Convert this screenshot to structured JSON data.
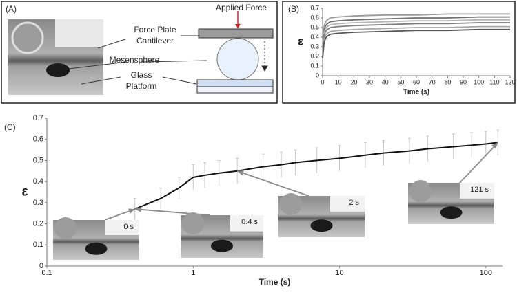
{
  "panel_a": {
    "label": "(A)",
    "applied_force": "Applied Force",
    "cantilever": [
      "Force Plate",
      "Cantilever"
    ],
    "sphere": "Mesensphere",
    "platform": [
      "Glass",
      "Platform"
    ]
  },
  "chart_data": [
    {
      "type": "line",
      "label": "(B)",
      "ylabel": "ε",
      "xlabel": "Time (s)",
      "xlim": [
        0,
        120
      ],
      "xticks": [
        0,
        10,
        20,
        30,
        40,
        50,
        60,
        70,
        80,
        90,
        100,
        110,
        120
      ],
      "ylim": [
        0,
        0.7
      ],
      "yticks": [
        0,
        0.1,
        0.2,
        0.3,
        0.4,
        0.5,
        0.6,
        0.7
      ],
      "x": [
        0,
        1,
        2,
        3,
        5,
        10,
        20,
        40,
        60,
        80,
        100,
        120
      ],
      "series": [
        {
          "color": "#9a9a9a",
          "values": [
            0.3,
            0.52,
            0.56,
            0.58,
            0.6,
            0.61,
            0.62,
            0.63,
            0.63,
            0.64,
            0.64,
            0.64
          ]
        },
        {
          "color": "#6e6e6e",
          "values": [
            0.28,
            0.48,
            0.52,
            0.54,
            0.56,
            0.57,
            0.58,
            0.59,
            0.6,
            0.6,
            0.61,
            0.61
          ]
        },
        {
          "color": "#b5b5b5",
          "values": [
            0.25,
            0.45,
            0.49,
            0.51,
            0.53,
            0.54,
            0.55,
            0.56,
            0.57,
            0.57,
            0.58,
            0.58
          ]
        },
        {
          "color": "#7d7d7d",
          "values": [
            0.22,
            0.42,
            0.46,
            0.48,
            0.5,
            0.51,
            0.52,
            0.53,
            0.54,
            0.54,
            0.55,
            0.55
          ]
        },
        {
          "color": "#a8a8a8",
          "values": [
            0.2,
            0.38,
            0.42,
            0.44,
            0.46,
            0.47,
            0.48,
            0.49,
            0.5,
            0.5,
            0.51,
            0.51
          ]
        },
        {
          "color": "#555555",
          "values": [
            0.18,
            0.35,
            0.39,
            0.41,
            0.43,
            0.44,
            0.45,
            0.46,
            0.47,
            0.47,
            0.48,
            0.48
          ]
        }
      ]
    },
    {
      "type": "line",
      "label": "(C)",
      "log_x": true,
      "ylabel": "ε",
      "xlabel": "Time (s)",
      "xlim": [
        0.1,
        130
      ],
      "xticks": [
        0.1,
        1,
        10,
        100
      ],
      "ylim": [
        0,
        0.7
      ],
      "yticks": [
        0,
        0.1,
        0.2,
        0.3,
        0.4,
        0.5,
        0.6,
        0.7
      ],
      "x": [
        0.4,
        0.6,
        0.8,
        1,
        1.2,
        1.5,
        2,
        3,
        4,
        5,
        7,
        10,
        15,
        20,
        30,
        40,
        60,
        80,
        100,
        121
      ],
      "series": [
        {
          "color": "#111111",
          "values": [
            0.27,
            0.32,
            0.37,
            0.42,
            0.43,
            0.44,
            0.45,
            0.47,
            0.48,
            0.49,
            0.5,
            0.51,
            0.525,
            0.535,
            0.545,
            0.555,
            0.565,
            0.572,
            0.578,
            0.585
          ],
          "errors": [
            0.05,
            0.05,
            0.05,
            0.06,
            0.06,
            0.06,
            0.06,
            0.06,
            0.06,
            0.06,
            0.06,
            0.06,
            0.06,
            0.06,
            0.06,
            0.06,
            0.06,
            0.06,
            0.06,
            0.06
          ],
          "error_color": "#c4c4c4"
        }
      ],
      "annotations": [
        {
          "text": "0 s",
          "x": 0.4
        },
        {
          "text": "0.4 s",
          "x": 0.4
        },
        {
          "text": "2 s",
          "x": 2
        },
        {
          "text": "121 s",
          "x": 121
        }
      ]
    }
  ]
}
